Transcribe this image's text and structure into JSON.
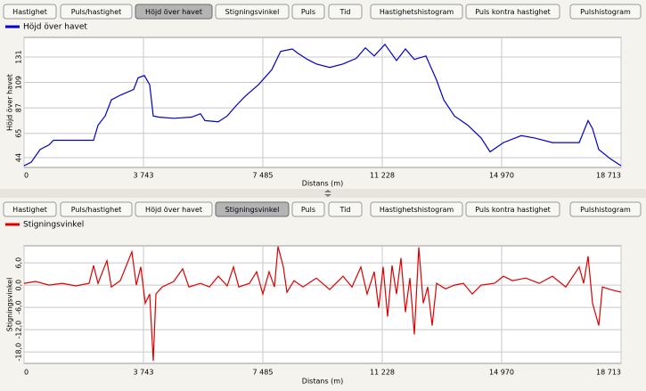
{
  "tabs": [
    "Hastighet",
    "Puls/hastighet",
    "Höjd över havet",
    "Stigningsvinkel",
    "Puls",
    "Tid",
    "Hastighetshistogram",
    "Puls kontra hastighet",
    "Pulshistogram"
  ],
  "selected_tabs": [
    2,
    3
  ],
  "chart_data": [
    {
      "type": "line",
      "x_label": "Distans (m)",
      "y_label": "Höjd över havet",
      "grid": true,
      "xlim": [
        0,
        18713
      ],
      "ylim": [
        35.5,
        148
      ],
      "xticks": [
        0,
        {
          "value": 3743,
          "label": "3 743"
        },
        {
          "value": 7485,
          "label": "7 485"
        },
        {
          "value": 11228,
          "label": "11 228"
        },
        {
          "value": 14970,
          "label": "14 970"
        },
        {
          "value": 18713,
          "label": "18 713"
        }
      ],
      "yticks": [
        44,
        65,
        87,
        109,
        131
      ],
      "x": [
        0,
        223,
        503,
        782,
        922,
        1341,
        2179,
        2318,
        2542,
        2737,
        3016,
        3435,
        3575,
        3771,
        3938,
        4050,
        4217,
        4692,
        5251,
        5530,
        5670,
        6089,
        6368,
        6648,
        6927,
        7346,
        7765,
        8044,
        8407,
        8603,
        8882,
        9161,
        9580,
        9999,
        10418,
        10698,
        10977,
        11312,
        11675,
        11954,
        12233,
        12597,
        12932,
        13155,
        13491,
        13910,
        14329,
        14608,
        15027,
        15586,
        16005,
        16563,
        17401,
        17680,
        17820,
        18016,
        18379,
        18713
      ],
      "series": [
        {
          "name": "Höjd över havet",
          "color": "#0000cc",
          "values": [
            37,
            40,
            51,
            55,
            59,
            59,
            59,
            72,
            80,
            94,
            98,
            103,
            113,
            115,
            107,
            80,
            79,
            78,
            79,
            82,
            76,
            75,
            80,
            89,
            97,
            107,
            120,
            136,
            138,
            134,
            129,
            125,
            122,
            125,
            130,
            139,
            132,
            142,
            128,
            138,
            129,
            132,
            111,
            94,
            80,
            72,
            61,
            49,
            57,
            63,
            61,
            57,
            57,
            76,
            69,
            51,
            43,
            37
          ]
        }
      ]
    },
    {
      "type": "line",
      "x_label": "Distans (m)",
      "y_label": "Stigningsvinkel",
      "grid": true,
      "xlim": [
        0,
        18713
      ],
      "ylim": [
        -21.1,
        10.6
      ],
      "xticks": [
        0,
        {
          "value": 3743,
          "label": "3 743"
        },
        {
          "value": 7485,
          "label": "7 485"
        },
        {
          "value": 11228,
          "label": "11 228"
        },
        {
          "value": 14970,
          "label": "14 970"
        },
        {
          "value": 18713,
          "label": "18 713"
        }
      ],
      "yticks": [
        {
          "value": 6,
          "label": "6,0"
        },
        {
          "value": 0,
          "label": "0,0"
        },
        {
          "value": -6,
          "label": "-6,0"
        },
        {
          "value": -12,
          "label": "-12,0"
        },
        {
          "value": -18,
          "label": "-18,0"
        }
      ],
      "x": [
        0,
        363,
        782,
        1201,
        1620,
        2039,
        2179,
        2318,
        2598,
        2737,
        3016,
        3379,
        3519,
        3659,
        3799,
        3938,
        4050,
        4134,
        4329,
        4692,
        4972,
        5167,
        5530,
        5810,
        6089,
        6368,
        6564,
        6732,
        7067,
        7290,
        7486,
        7681,
        7849,
        7960,
        8128,
        8240,
        8463,
        8742,
        9161,
        9580,
        9999,
        10279,
        10558,
        10754,
        10977,
        11117,
        11256,
        11396,
        11535,
        11675,
        11815,
        11954,
        12094,
        12233,
        12373,
        12513,
        12653,
        12792,
        12932,
        13212,
        13491,
        13771,
        14050,
        14329,
        14748,
        15027,
        15307,
        15726,
        16145,
        16563,
        16982,
        17401,
        17541,
        17680,
        17820,
        18016,
        18128,
        18379,
        18713
      ],
      "series": [
        {
          "name": "Stigningsvinkel",
          "color": "#dd0000",
          "values": [
            0.5,
            1,
            0,
            0.5,
            -0.2,
            0.5,
            5.3,
            0.5,
            6.6,
            -0.5,
            1.2,
            9,
            0,
            4.9,
            -4.9,
            -2.4,
            -20.4,
            -2.4,
            -0.5,
            1,
            4.4,
            -0.5,
            0.5,
            -0.5,
            2.4,
            -0.2,
            4.9,
            -0.5,
            0.5,
            3.6,
            -2.4,
            3.6,
            -0.5,
            10.4,
            4.9,
            -1.9,
            1.2,
            -0.5,
            1.9,
            -1.2,
            2.4,
            -0.5,
            4.9,
            -2.4,
            3.6,
            -6.1,
            4.9,
            -8.5,
            5.3,
            -2.4,
            7.3,
            -7.3,
            1.9,
            -13.3,
            10.2,
            -4.9,
            -0.5,
            -10.9,
            0.5,
            -1,
            0,
            0.5,
            -2.4,
            0,
            0.5,
            2.4,
            1.2,
            1.9,
            0.5,
            2.4,
            -0.5,
            4.9,
            0.5,
            7.8,
            -4.9,
            -10.9,
            -0.5,
            -1.2,
            -1.9
          ]
        }
      ]
    }
  ]
}
